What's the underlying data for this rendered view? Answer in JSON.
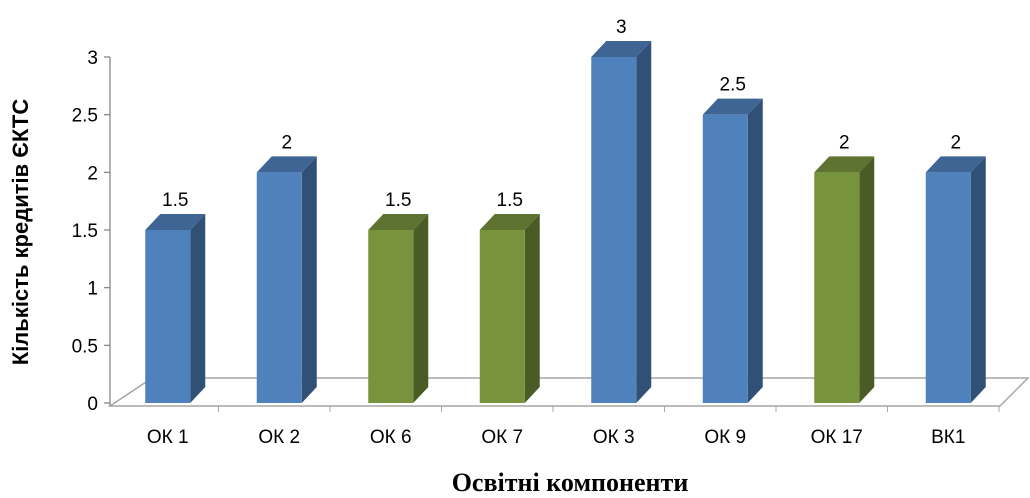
{
  "chart_data": {
    "type": "bar",
    "categories": [
      "ОК 1",
      "ОК 2",
      "ОК 6",
      "ОК 7",
      "ОК 3",
      "ОК 9",
      "ОК 17",
      "ВК1"
    ],
    "values": [
      1.5,
      2,
      1.5,
      1.5,
      3,
      2.5,
      2,
      2
    ],
    "data_labels": [
      "1.5",
      "2",
      "1.5",
      "1.5",
      "3",
      "2.5",
      "2",
      "2"
    ],
    "bar_colors": [
      "#4f81bd",
      "#4f81bd",
      "#77933c",
      "#77933c",
      "#4f81bd",
      "#4f81bd",
      "#77933c",
      "#4f81bd"
    ],
    "xlabel": "Освітні компоненти",
    "ylabel": "Кількість кредитів ЄКТС",
    "ylim": [
      0,
      3
    ],
    "yticks": [
      "0",
      "0.5",
      "1",
      "1.5",
      "2",
      "2.5",
      "3"
    ],
    "style": "3d-columns",
    "grid": false,
    "legend": "none"
  }
}
